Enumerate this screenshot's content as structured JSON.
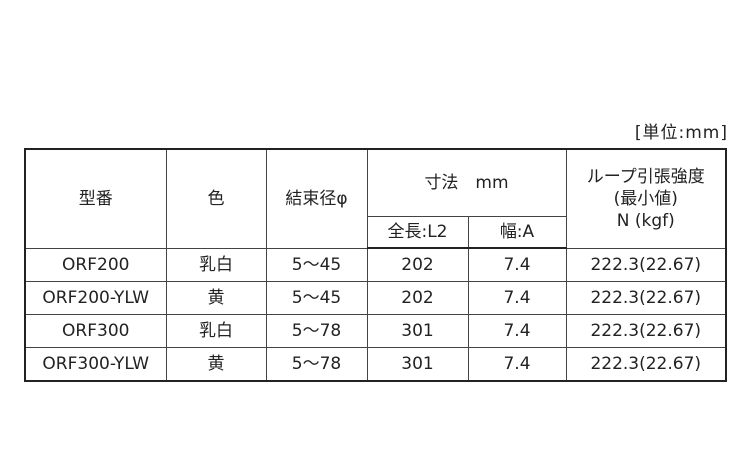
{
  "unit_label": "[単位:mm]",
  "headers": {
    "model": "型番",
    "color": "色",
    "bundle_dia": "結束径φ",
    "dimensions": "寸法　mm",
    "length": "全長:L2",
    "width": "幅:A",
    "strength_l1": "ループ引張強度",
    "strength_l2": "(最小値)",
    "strength_l3": "N (kgf)"
  },
  "rows": [
    {
      "model": "ORF200",
      "color": "乳白",
      "bundle_dia": "5～45",
      "length": "202",
      "width": "7.4",
      "strength": "222.3(22.67)"
    },
    {
      "model": "ORF200-YLW",
      "color": "黄",
      "bundle_dia": "5～45",
      "length": "202",
      "width": "7.4",
      "strength": "222.3(22.67)"
    },
    {
      "model": "ORF300",
      "color": "乳白",
      "bundle_dia": "5～78",
      "length": "301",
      "width": "7.4",
      "strength": "222.3(22.67)"
    },
    {
      "model": "ORF300-YLW",
      "color": "黄",
      "bundle_dia": "5～78",
      "length": "301",
      "width": "7.4",
      "strength": "222.3(22.67)"
    }
  ]
}
